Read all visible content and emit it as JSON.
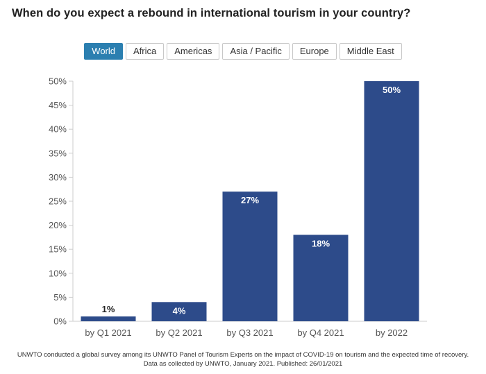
{
  "title": "When do you expect a rebound in international tourism in your country?",
  "tabs": [
    {
      "label": "World",
      "active": true
    },
    {
      "label": "Africa",
      "active": false
    },
    {
      "label": "Americas",
      "active": false
    },
    {
      "label": "Asia / Pacific",
      "active": false
    },
    {
      "label": "Europe",
      "active": false
    },
    {
      "label": "Middle East",
      "active": false
    }
  ],
  "colors": {
    "bar": "#2d4b8a",
    "active_tab": "#2b7fb0",
    "data_label_on_bar": "#ffffff",
    "data_label_above_bar": "#222222"
  },
  "chart_data": {
    "type": "bar",
    "categories": [
      "by Q1 2021",
      "by Q2 2021",
      "by Q3 2021",
      "by Q4 2021",
      "by 2022"
    ],
    "values": [
      1,
      4,
      27,
      18,
      50
    ],
    "data_labels": [
      "1%",
      "4%",
      "27%",
      "18%",
      "50%"
    ],
    "ylim": [
      0,
      50
    ],
    "yticks": [
      0,
      5,
      10,
      15,
      20,
      25,
      30,
      35,
      40,
      45,
      50
    ],
    "ytick_labels": [
      "0%",
      "5%",
      "10%",
      "15%",
      "20%",
      "25%",
      "30%",
      "35%",
      "40%",
      "45%",
      "50%"
    ],
    "title": "When do you expect a rebound in international tourism in your country?",
    "xlabel": "",
    "ylabel": "",
    "grid": false,
    "legend": "none"
  },
  "footnote": {
    "line1": "UNWTO conducted a global survey among its UNWTO Panel of Tourism Experts on the impact of COVID-19 on tourism and the expected time of recovery.",
    "line2": "Data as collected by UNWTO, January 2021. Published: 26/01/2021"
  }
}
